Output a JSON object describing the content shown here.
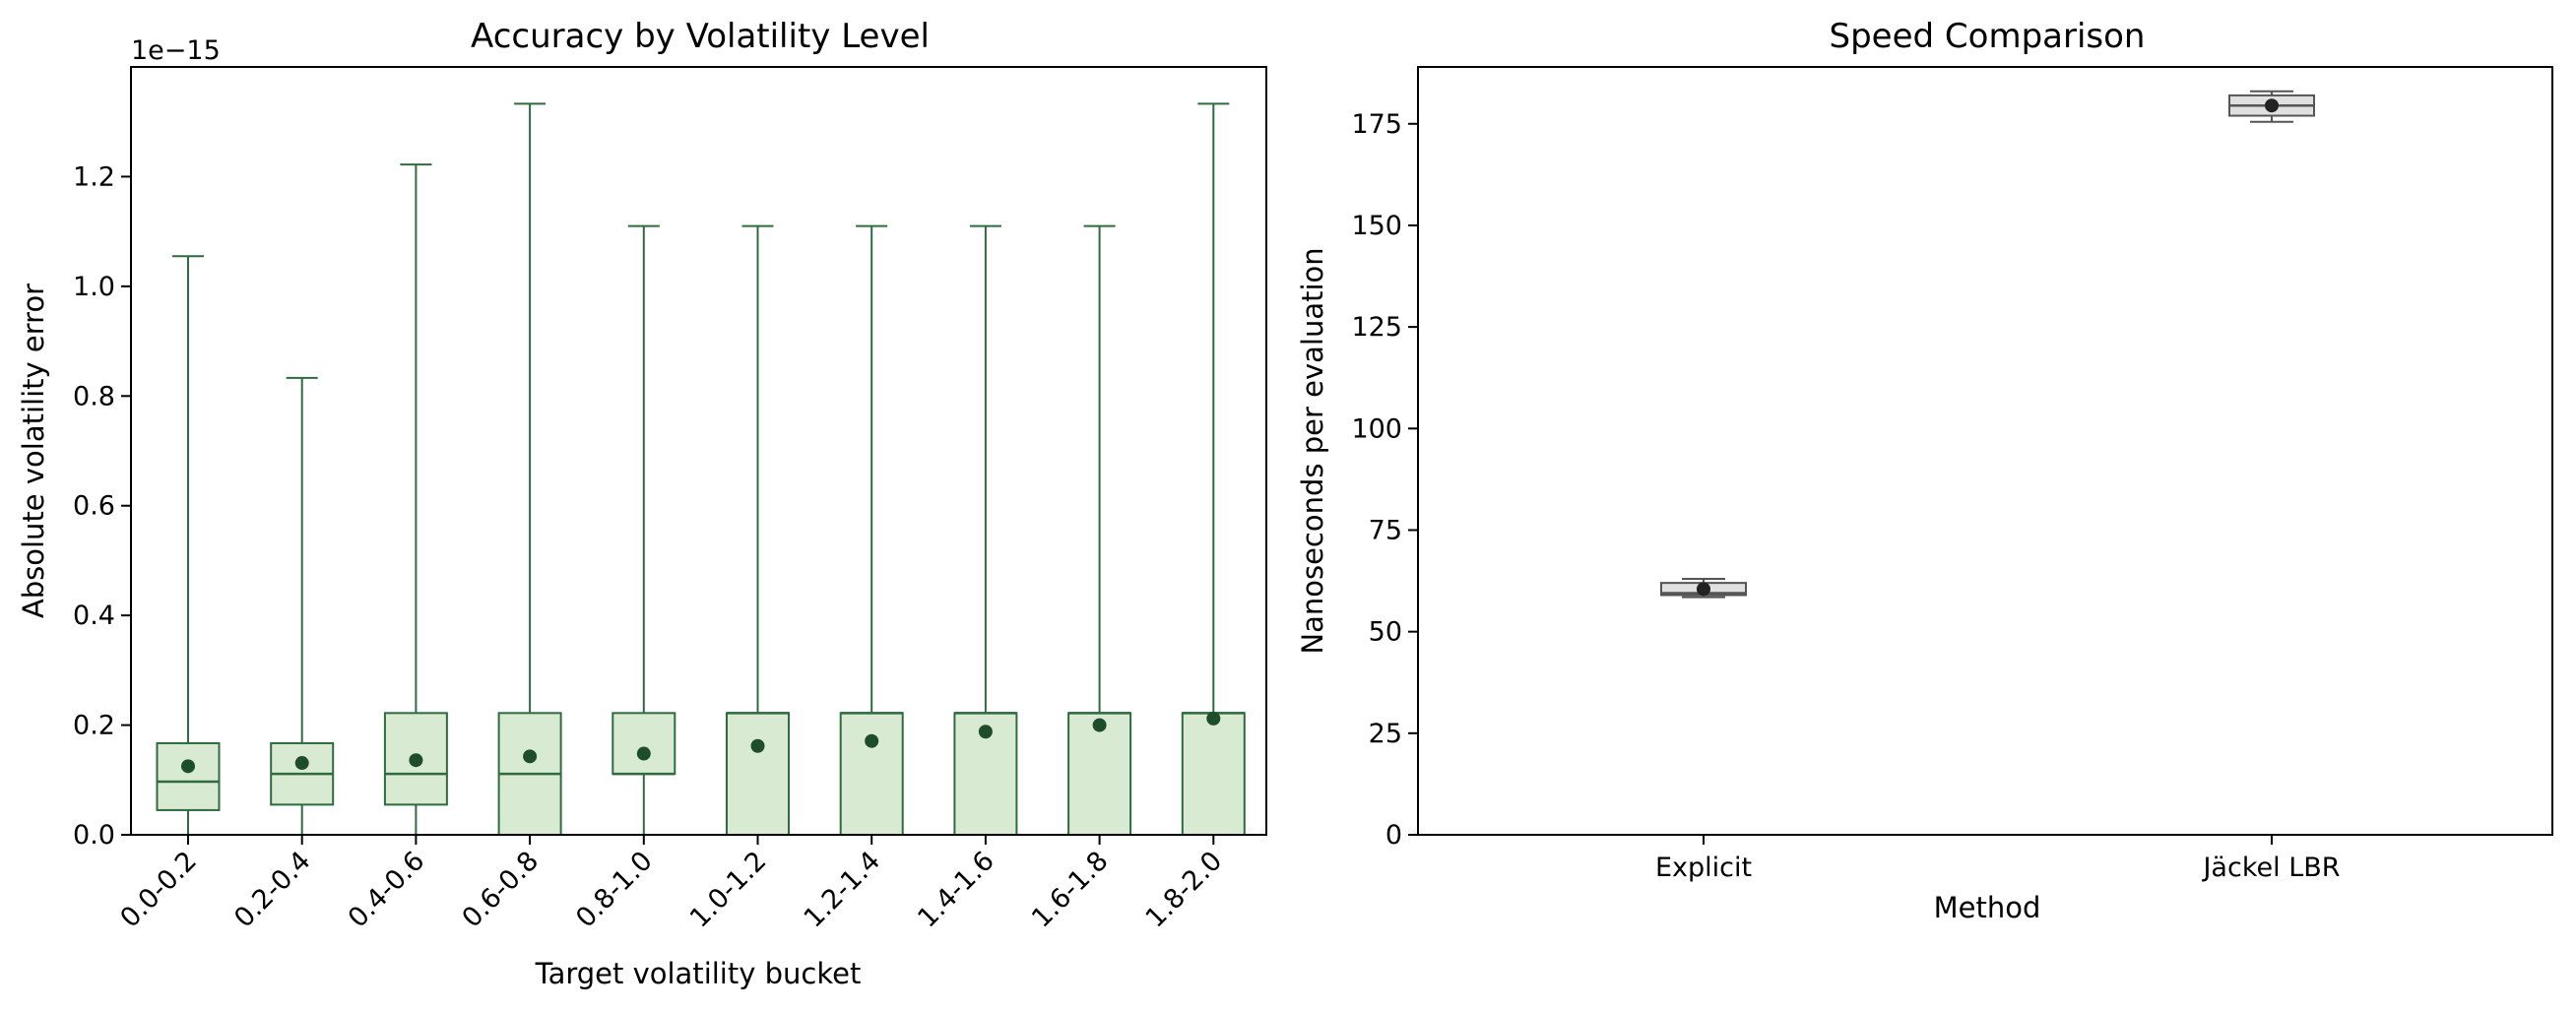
{
  "chart_data": [
    {
      "type": "box",
      "title": "Accuracy by Volatility Level",
      "xlabel": "Target volatility bucket",
      "ylabel": "Absolute volatility error",
      "y_offset_label": "1e−15",
      "ylim": [
        0,
        1.4
      ],
      "yticks": [
        "0.0",
        "0.2",
        "0.4",
        "0.6",
        "0.8",
        "1.0",
        "1.2"
      ],
      "categories": [
        "0.0-0.2",
        "0.2-0.4",
        "0.4-0.6",
        "0.6-0.8",
        "0.8-1.0",
        "1.0-1.2",
        "1.2-1.4",
        "1.4-1.6",
        "1.6-1.8",
        "1.8-2.0"
      ],
      "series": [
        {
          "whisker_low": [
            0,
            0,
            0,
            0,
            0,
            0,
            0,
            0,
            0,
            0
          ],
          "q1": [
            0.045,
            0.055,
            0.055,
            0,
            0.111,
            0,
            0,
            0,
            0,
            0
          ],
          "median": [
            0.097,
            0.111,
            0.111,
            0.111,
            0.111,
            0.222,
            0.222,
            0.222,
            0.222,
            0.222
          ],
          "q3": [
            0.167,
            0.167,
            0.222,
            0.222,
            0.222,
            0.222,
            0.222,
            0.222,
            0.222,
            0.222
          ],
          "whisker_high": [
            1.055,
            0.833,
            1.222,
            1.333,
            1.11,
            1.11,
            1.11,
            1.11,
            1.11,
            1.333
          ],
          "mean": [
            0.125,
            0.131,
            0.136,
            0.143,
            0.148,
            0.162,
            0.171,
            0.188,
            0.2,
            0.212
          ]
        }
      ],
      "colors": {
        "box_fill": "#d9ead3",
        "box_edge": "#2e6b3e",
        "mean_marker": "#1e4d2b"
      },
      "grid": false
    },
    {
      "type": "box",
      "title": "Speed Comparison",
      "xlabel": "Method",
      "ylabel": "Nanoseconds per evaluation",
      "ylim": [
        0,
        189
      ],
      "yticks": [
        "0",
        "25",
        "50",
        "75",
        "100",
        "125",
        "150",
        "175"
      ],
      "categories": [
        "Explicit",
        "Jäckel LBR"
      ],
      "series": [
        {
          "whisker_low": [
            58.5,
            175.5
          ],
          "q1": [
            59.0,
            177.0
          ],
          "median": [
            59.5,
            179.5
          ],
          "q3": [
            62.0,
            182.0
          ],
          "whisker_high": [
            63.0,
            183.0
          ],
          "mean": [
            60.5,
            179.5
          ]
        }
      ],
      "colors": {
        "box_fill": "#e0e0e0",
        "box_edge": "#555555",
        "mean_marker": "#222222"
      },
      "grid": false
    }
  ]
}
